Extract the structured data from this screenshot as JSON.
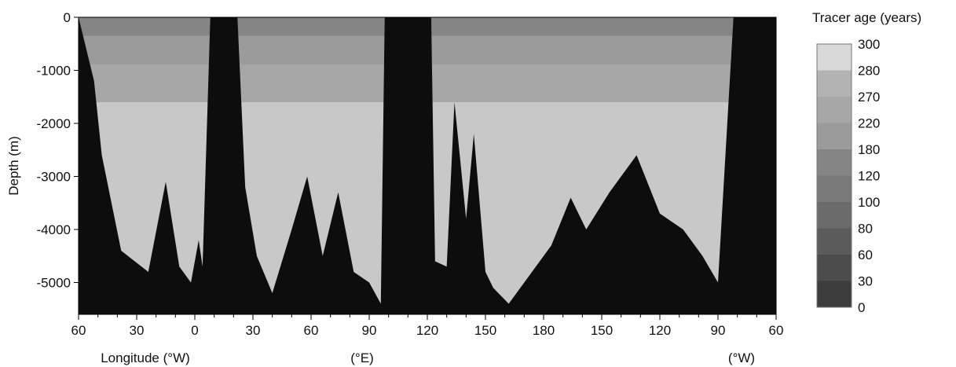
{
  "chart_data": {
    "type": "heatmap",
    "title": "",
    "ylabel": "Depth (m)",
    "xlabel_parts": [
      "Longitude (°W)",
      "(°E)",
      "(°W)"
    ],
    "y_ticks": [
      {
        "value": 0,
        "label": "0"
      },
      {
        "value": -1000,
        "label": "-1000"
      },
      {
        "value": -2000,
        "label": "-2000"
      },
      {
        "value": -3000,
        "label": "-3000"
      },
      {
        "value": -4000,
        "label": "-4000"
      },
      {
        "value": -5000,
        "label": "-5000"
      }
    ],
    "ylim": [
      -5600,
      0
    ],
    "section_distance_range": [
      0,
      300
    ],
    "x_ticks": [
      {
        "pos": 0,
        "label": "60"
      },
      {
        "pos": 30,
        "label": "30"
      },
      {
        "pos": 60,
        "label": "0"
      },
      {
        "pos": 90,
        "label": "30"
      },
      {
        "pos": 120,
        "label": "60"
      },
      {
        "pos": 150,
        "label": "90"
      },
      {
        "pos": 180,
        "label": "120"
      },
      {
        "pos": 210,
        "label": "150"
      },
      {
        "pos": 240,
        "label": "180"
      },
      {
        "pos": 270,
        "label": "150"
      },
      {
        "pos": 300,
        "label": "120"
      },
      {
        "pos": 330,
        "label": "90"
      },
      {
        "pos": 360,
        "label": "60"
      }
    ],
    "colorbar": {
      "title": "Tracer age (years)",
      "levels": [
        "300",
        "280",
        "270",
        "220",
        "180",
        "120",
        "100",
        "80",
        "60",
        "30",
        "0"
      ],
      "colors": [
        "#d9d9d9",
        "#b3b3b3",
        "#a7a7a7",
        "#9b9b9b",
        "#858585",
        "#7a7a7a",
        "#6b6b6b",
        "#5b5b5b",
        "#4c4c4c",
        "#3c3c3c"
      ]
    },
    "bathymetry_color": "#0d0d0d",
    "deep_water_color": "#c8c8c8",
    "bathymetry_depth": [
      {
        "pos": 0,
        "depth": 0
      },
      {
        "pos": 8,
        "depth": -1200
      },
      {
        "pos": 12,
        "depth": -2600
      },
      {
        "pos": 22,
        "depth": -4400
      },
      {
        "pos": 36,
        "depth": -4800
      },
      {
        "pos": 45,
        "depth": -3100
      },
      {
        "pos": 52,
        "depth": -4700
      },
      {
        "pos": 58,
        "depth": -5000
      },
      {
        "pos": 62,
        "depth": -4200
      },
      {
        "pos": 64,
        "depth": -4700
      },
      {
        "pos": 68,
        "depth": 0
      },
      {
        "pos": 82,
        "depth": 0
      },
      {
        "pos": 86,
        "depth": -3200
      },
      {
        "pos": 92,
        "depth": -4500
      },
      {
        "pos": 100,
        "depth": -5200
      },
      {
        "pos": 110,
        "depth": -4000
      },
      {
        "pos": 118,
        "depth": -3000
      },
      {
        "pos": 126,
        "depth": -4500
      },
      {
        "pos": 134,
        "depth": -3300
      },
      {
        "pos": 142,
        "depth": -4800
      },
      {
        "pos": 150,
        "depth": -5000
      },
      {
        "pos": 156,
        "depth": -5400
      },
      {
        "pos": 158,
        "depth": 0
      },
      {
        "pos": 182,
        "depth": 0
      },
      {
        "pos": 184,
        "depth": -4600
      },
      {
        "pos": 190,
        "depth": -4700
      },
      {
        "pos": 194,
        "depth": -1600
      },
      {
        "pos": 200,
        "depth": -3800
      },
      {
        "pos": 204,
        "depth": -2200
      },
      {
        "pos": 210,
        "depth": -4800
      },
      {
        "pos": 214,
        "depth": -5100
      },
      {
        "pos": 222,
        "depth": -5400
      },
      {
        "pos": 232,
        "depth": -4900
      },
      {
        "pos": 244,
        "depth": -4300
      },
      {
        "pos": 254,
        "depth": -3400
      },
      {
        "pos": 262,
        "depth": -4000
      },
      {
        "pos": 274,
        "depth": -3300
      },
      {
        "pos": 288,
        "depth": -2600
      },
      {
        "pos": 300,
        "depth": -3700
      },
      {
        "pos": 312,
        "depth": -4000
      },
      {
        "pos": 322,
        "depth": -4500
      },
      {
        "pos": 330,
        "depth": -5000
      },
      {
        "pos": 338,
        "depth": 0
      },
      {
        "pos": 360,
        "depth": 0
      }
    ]
  }
}
